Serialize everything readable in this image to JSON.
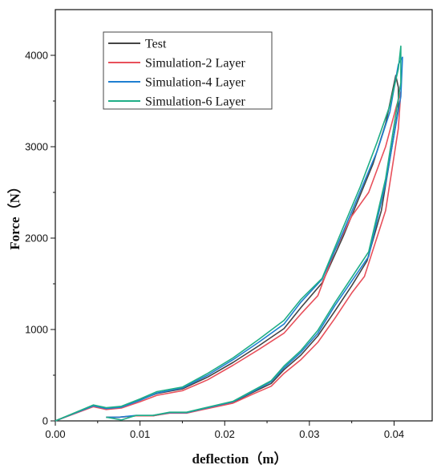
{
  "chart_data": {
    "type": "line",
    "xlabel": "deflection（m）",
    "ylabel": "Force（N）",
    "xlim": [
      0.0,
      0.0445
    ],
    "ylim": [
      0,
      4500
    ],
    "x_ticks": [
      "0.00",
      "0.01",
      "0.02",
      "0.03",
      "0.04"
    ],
    "y_ticks": [
      "0",
      "1000",
      "2000",
      "3000",
      "4000"
    ],
    "x_tick_values": [
      0.0,
      0.01,
      0.02,
      0.03,
      0.04
    ],
    "y_tick_values": [
      0,
      1000,
      2000,
      3000,
      4000
    ],
    "legend_position": "top-left",
    "grid": false,
    "series": [
      {
        "name": "Test",
        "color": "#444444",
        "x": [
          0.0,
          0.0045,
          0.006,
          0.0078,
          0.01,
          0.012,
          0.015,
          0.018,
          0.021,
          0.024,
          0.027,
          0.029,
          0.0315,
          0.034,
          0.036,
          0.0375,
          0.039,
          0.0402,
          0.0405,
          0.0405,
          0.0385,
          0.0368,
          0.035,
          0.033,
          0.031,
          0.029,
          0.027,
          0.0255,
          0.0235,
          0.021,
          0.018,
          0.0155,
          0.0135,
          0.0115,
          0.0095,
          0.0075,
          0.006
        ],
        "y": [
          0,
          170,
          140,
          155,
          230,
          300,
          350,
          480,
          640,
          820,
          1010,
          1240,
          1510,
          2020,
          2470,
          2810,
          3250,
          3780,
          3650,
          3420,
          2300,
          1750,
          1480,
          1200,
          930,
          720,
          560,
          410,
          320,
          205,
          140,
          90,
          90,
          55,
          55,
          40,
          40
        ]
      },
      {
        "name": "Simulation-2 Layer",
        "color": "#e8505b",
        "x": [
          0.0,
          0.0045,
          0.006,
          0.0078,
          0.01,
          0.012,
          0.015,
          0.018,
          0.021,
          0.024,
          0.027,
          0.029,
          0.031,
          0.033,
          0.035,
          0.037,
          0.039,
          0.0403,
          0.0408,
          0.0405,
          0.039,
          0.0365,
          0.035,
          0.033,
          0.031,
          0.029,
          0.027,
          0.0255,
          0.0235,
          0.021,
          0.018,
          0.0155,
          0.0135,
          0.0115,
          0.0095,
          0.0075,
          0.006
        ],
        "y": [
          0,
          155,
          125,
          140,
          210,
          280,
          330,
          450,
          610,
          780,
          960,
          1170,
          1370,
          1860,
          2240,
          2500,
          3000,
          3450,
          3600,
          3200,
          2300,
          1580,
          1400,
          1120,
          860,
          670,
          520,
          380,
          300,
          195,
          135,
          85,
          85,
          55,
          55,
          40,
          40
        ]
      },
      {
        "name": "Simulation-4 Layer",
        "color": "#1f7fd1",
        "x": [
          0.0,
          0.0045,
          0.006,
          0.0078,
          0.01,
          0.012,
          0.015,
          0.018,
          0.021,
          0.024,
          0.027,
          0.029,
          0.0315,
          0.034,
          0.036,
          0.038,
          0.0395,
          0.0405,
          0.041,
          0.0408,
          0.039,
          0.037,
          0.035,
          0.033,
          0.031,
          0.029,
          0.027,
          0.0255,
          0.0235,
          0.021,
          0.018,
          0.0155,
          0.0135,
          0.0115,
          0.0095,
          0.0075,
          0.006
        ],
        "y": [
          0,
          165,
          135,
          150,
          225,
          305,
          360,
          500,
          670,
          860,
          1060,
          1300,
          1550,
          2070,
          2510,
          2950,
          3380,
          3900,
          3980,
          3550,
          2600,
          1800,
          1530,
          1260,
          960,
          750,
          580,
          430,
          330,
          210,
          145,
          90,
          90,
          60,
          60,
          40,
          40
        ]
      },
      {
        "name": "Simulation-6 Layer",
        "color": "#1fae86",
        "x": [
          0.0,
          0.0045,
          0.006,
          0.0078,
          0.01,
          0.012,
          0.015,
          0.018,
          0.021,
          0.024,
          0.027,
          0.029,
          0.0315,
          0.034,
          0.036,
          0.038,
          0.0395,
          0.0405,
          0.0408,
          0.0408,
          0.039,
          0.037,
          0.035,
          0.033,
          0.031,
          0.029,
          0.027,
          0.0255,
          0.0235,
          0.021,
          0.018,
          0.0155,
          0.0135,
          0.0115,
          0.0095,
          0.0078,
          0.006
        ],
        "y": [
          0,
          175,
          145,
          160,
          240,
          320,
          370,
          520,
          690,
          890,
          1100,
          1330,
          1560,
          2120,
          2560,
          3050,
          3450,
          3850,
          4100,
          3700,
          2650,
          1850,
          1570,
          1290,
          990,
          770,
          600,
          440,
          340,
          215,
          150,
          95,
          95,
          60,
          60,
          10,
          40
        ]
      }
    ]
  }
}
